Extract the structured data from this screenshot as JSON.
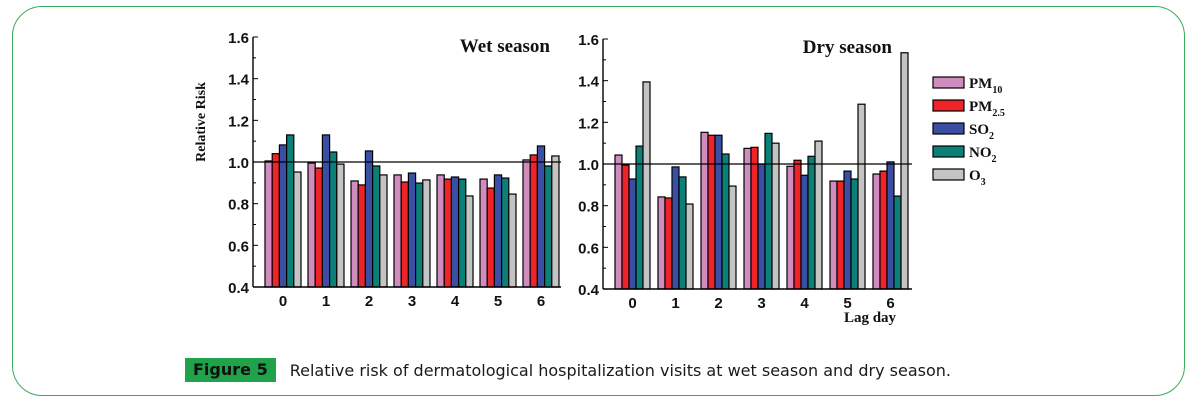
{
  "figure": {
    "label": "Figure 5",
    "caption": "Relative risk of dermatological hospitalization visits at wet season and dry season."
  },
  "legend": [
    {
      "key": "PM10",
      "base": "PM",
      "sub": "10",
      "color": "#d18cbf"
    },
    {
      "key": "PM2.5",
      "base": "PM",
      "sub": "2.5",
      "color": "#ee2428"
    },
    {
      "key": "SO2",
      "base": "SO",
      "sub": "2",
      "color": "#3a4fa3"
    },
    {
      "key": "NO2",
      "base": "NO",
      "sub": "2",
      "color": "#0a8078"
    },
    {
      "key": "O3",
      "base": "O",
      "sub": "3",
      "color": "#c4c4c4"
    }
  ],
  "chart_data": [
    {
      "type": "bar",
      "title": "Wet season",
      "xlabel": "",
      "ylabel": "Relative Risk",
      "ylim": [
        0.4,
        1.6
      ],
      "yticks": [
        "0.4",
        "0.6",
        "0.8",
        "1.0",
        "1.2",
        "1.4",
        "1.6"
      ],
      "reference_line": 1.0,
      "categories": [
        "0",
        "1",
        "2",
        "3",
        "4",
        "5",
        "6"
      ],
      "series": [
        {
          "name": "PM10",
          "values": [
            1.005,
            0.995,
            0.909,
            0.938,
            0.938,
            0.918,
            1.01
          ]
        },
        {
          "name": "PM2.5",
          "values": [
            1.04,
            0.971,
            0.89,
            0.904,
            0.918,
            0.875,
            1.034
          ]
        },
        {
          "name": "SO2",
          "values": [
            1.082,
            1.13,
            1.053,
            0.947,
            0.928,
            0.938,
            1.077
          ]
        },
        {
          "name": "NO2",
          "values": [
            1.13,
            1.048,
            0.981,
            0.899,
            0.918,
            0.923,
            0.981
          ]
        },
        {
          "name": "O3",
          "values": [
            0.952,
            0.99,
            0.938,
            0.914,
            0.837,
            0.846,
            1.029
          ]
        }
      ]
    },
    {
      "type": "bar",
      "title": "Dry season",
      "xlabel": "Lag day",
      "ylabel": "",
      "ylim": [
        0.4,
        1.6
      ],
      "yticks": [
        "0.4",
        "0.6",
        "0.8",
        "1.0",
        "1.2",
        "1.4",
        "1.6"
      ],
      "reference_line": 1.0,
      "categories": [
        "0",
        "1",
        "2",
        "3",
        "4",
        "5",
        "6"
      ],
      "series": [
        {
          "name": "PM10",
          "values": [
            1.043,
            0.842,
            1.152,
            1.075,
            0.989,
            0.918,
            0.952
          ]
        },
        {
          "name": "PM2.5",
          "values": [
            0.995,
            0.837,
            1.138,
            1.08,
            1.018,
            0.918,
            0.966
          ]
        },
        {
          "name": "SO2",
          "values": [
            0.928,
            0.986,
            1.138,
            1.0,
            0.946,
            0.966,
            1.01
          ]
        },
        {
          "name": "NO2",
          "values": [
            1.086,
            0.938,
            1.048,
            1.147,
            1.037,
            0.928,
            0.846
          ]
        },
        {
          "name": "O3",
          "values": [
            1.394,
            0.808,
            0.894,
            1.1,
            1.11,
            1.287,
            1.534
          ]
        }
      ]
    }
  ]
}
